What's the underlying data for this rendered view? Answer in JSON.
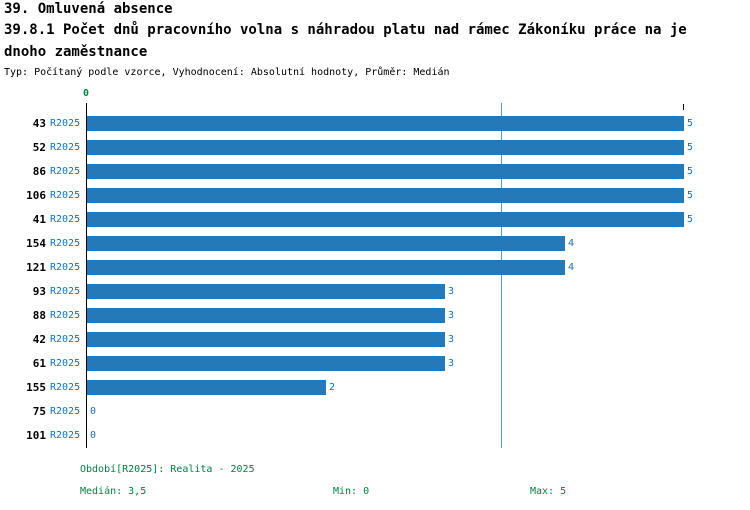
{
  "header": {
    "title1": "39. Omluvená absence",
    "title2": "39.8.1 Počet dnů pracovního volna s náhradou platu nad rámec Zákoníku práce na je",
    "title3": "dnoho zaměstnance",
    "subtitle": "Typ: Počítaný podle vzorce, Vyhodnocení: Absolutní hodnoty, Průměr: Medián"
  },
  "chart_data": {
    "type": "bar",
    "orientation": "horizontal",
    "categories": [
      "43",
      "52",
      "86",
      "106",
      "41",
      "154",
      "121",
      "93",
      "88",
      "42",
      "61",
      "155",
      "75",
      "101"
    ],
    "series": [
      {
        "name": "R2025",
        "values": [
          5,
          5,
          5,
          5,
          5,
          4,
          4,
          3,
          3,
          3,
          3,
          2,
          0,
          0
        ]
      }
    ],
    "xlim": [
      0,
      5
    ],
    "axis_origin_label": "0",
    "median": 3.5,
    "grid": false,
    "legend_position": "none"
  },
  "colors": {
    "bar": "#2579b8",
    "value_label": "#1a70b8",
    "period_label": "#1a70b8",
    "median_line": "#5b9ccc",
    "origin_label": "#008040",
    "stats_text": "#008040"
  },
  "footer": {
    "period": "Období[R2025]: Realita - 2025",
    "median": "Medián: 3,5",
    "min": "Min: 0",
    "max": "Max: 5"
  }
}
